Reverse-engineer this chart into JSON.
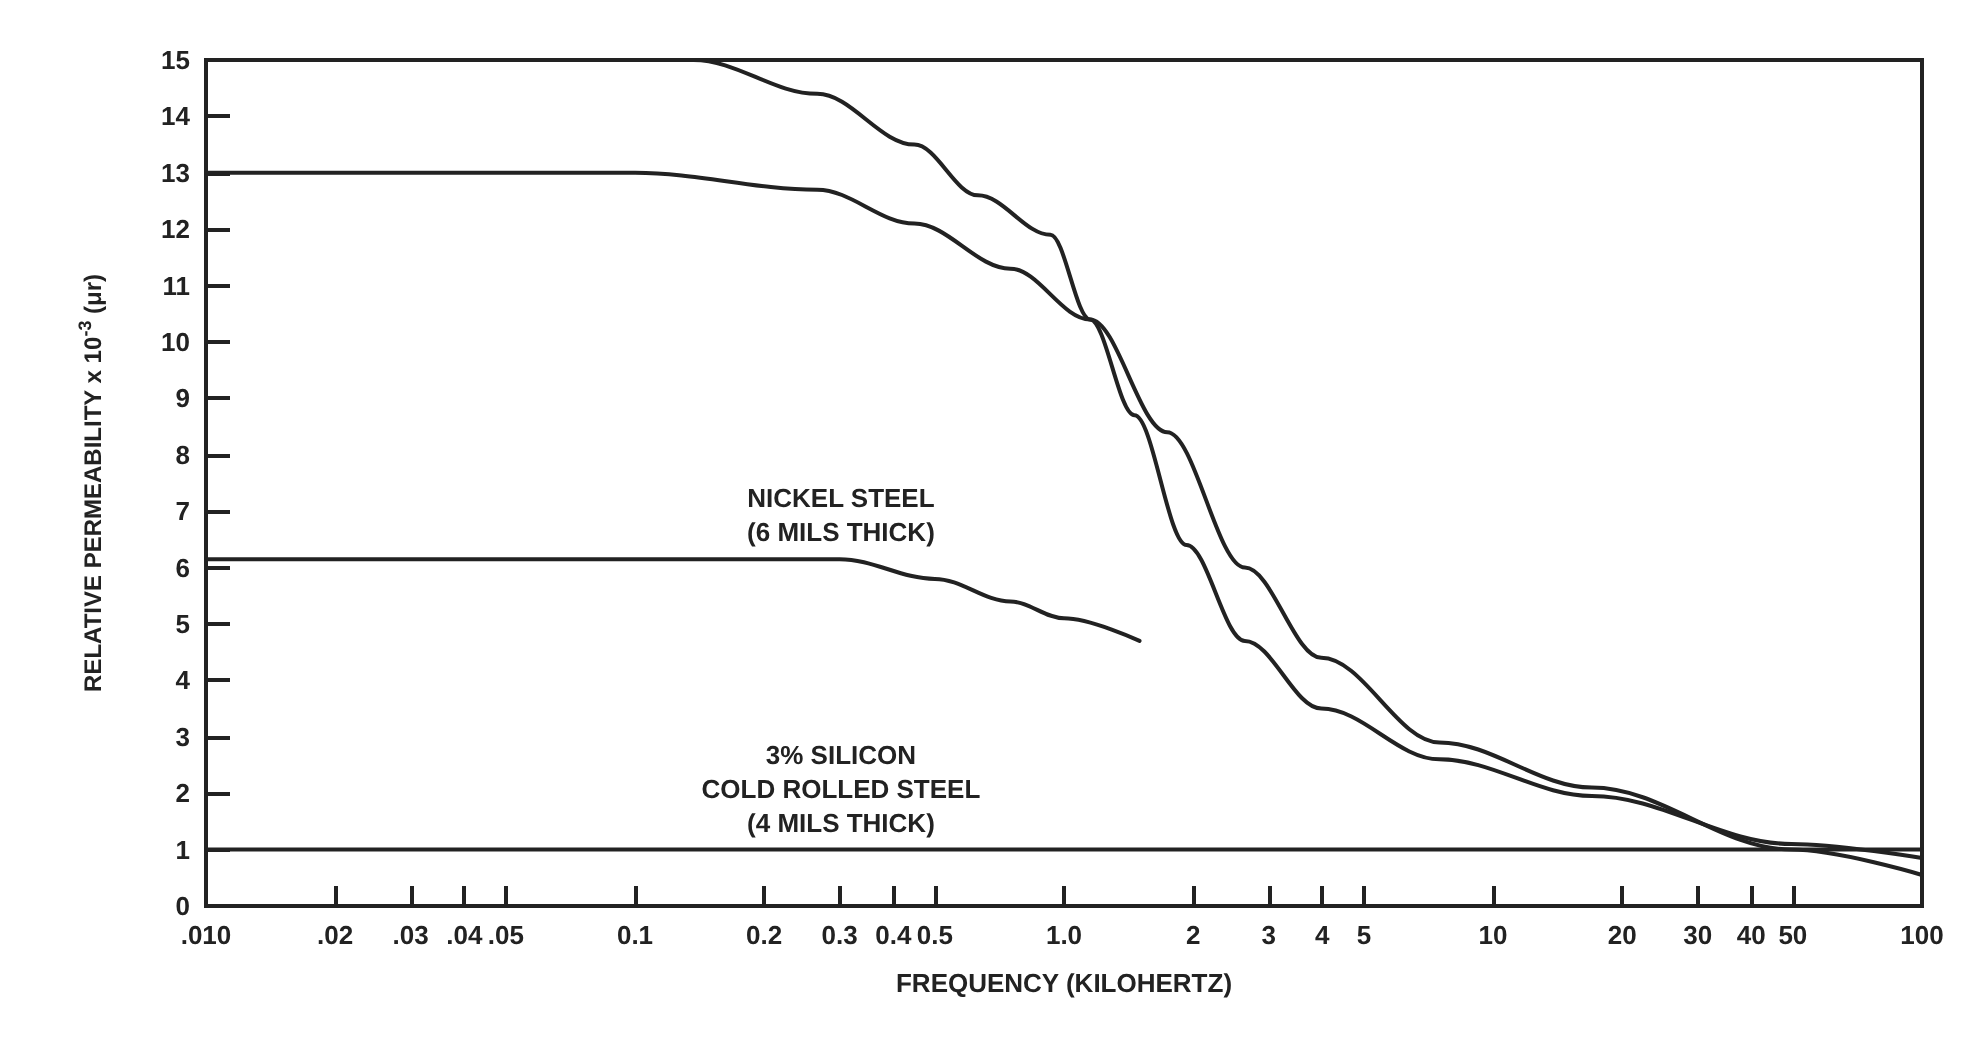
{
  "chart_data": {
    "type": "line",
    "xlabel": "FREQUENCY (KILOHERTZ)",
    "ylabel": "RELATIVE PERMEABILITY x 10$^{-3}$ (μr)",
    "log": "x",
    "xlim": [
      0.01,
      100
    ],
    "ylim": [
      0,
      15
    ],
    "xticks": [
      {
        "value": 0.01,
        "label": ".010"
      },
      {
        "value": 0.02,
        "label": ".02"
      },
      {
        "value": 0.03,
        "label": ".03"
      },
      {
        "value": 0.04,
        "label": ".04"
      },
      {
        "value": 0.05,
        "label": ".05"
      },
      0.1,
      0.2,
      0.3,
      0.4,
      0.5,
      {
        "value": 1,
        "label": "1.0"
      },
      2,
      3,
      4,
      5,
      10,
      20,
      30,
      40,
      50,
      100
    ],
    "yticks": [
      0,
      1,
      2,
      3,
      4,
      5,
      6,
      7,
      8,
      9,
      10,
      11,
      12,
      13,
      14,
      15
    ],
    "marker": "none",
    "line_style": "solid",
    "series": [
      {
        "color": "#222222",
        "x": [
          0.01,
          0.137,
          0.266,
          0.448,
          0.63,
          0.93,
          1.15,
          1.46,
          1.93,
          2.64,
          3.98,
          7.5,
          17,
          49.6,
          100
        ],
        "values": [
          15,
          15,
          14.4,
          13.5,
          12.6,
          11.9,
          10.4,
          8.7,
          6.4,
          4.7,
          3.5,
          2.6,
          1.95,
          1.1,
          0.85
        ]
      },
      {
        "color": "#222222",
        "x": [
          0.01,
          0.1,
          0.266,
          0.448,
          0.75,
          1.15,
          1.74,
          2.64,
          3.98,
          7.5,
          17,
          49.6,
          100
        ],
        "values": [
          13,
          13,
          12.7,
          12.1,
          11.3,
          10.4,
          8.4,
          6.0,
          4.4,
          2.9,
          2.1,
          1.0,
          0.55
        ]
      },
      {
        "name": "NICKEL STEEL\n(6 MILS THICK)",
        "color": "#222222",
        "x": [
          0.01,
          0.3,
          0.5,
          0.75,
          1.0,
          1.5
        ],
        "values": [
          6.15,
          6.15,
          5.8,
          5.4,
          5.1,
          4.7
        ]
      },
      {
        "name": "3% SILICON\nCOLD ROLLED STEEL\n(4 MILS THICK)",
        "color": "#222222",
        "x": [
          0.01,
          100
        ],
        "values": [
          1,
          1
        ]
      }
    ]
  }
}
